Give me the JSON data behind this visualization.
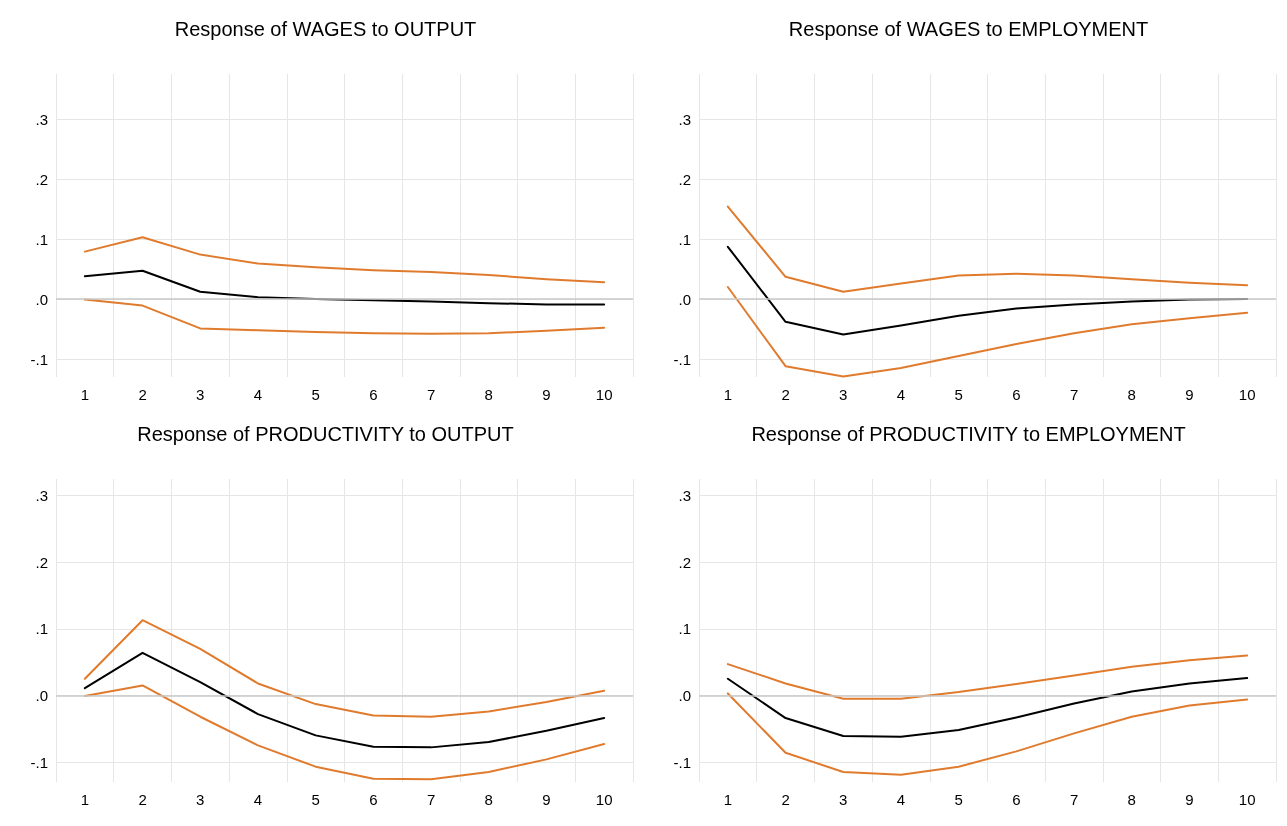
{
  "chart_data": [
    {
      "type": "line",
      "title": "Response of WAGES to OUTPUT",
      "categories": [
        "1",
        "2",
        "3",
        "4",
        "5",
        "6",
        "7",
        "8",
        "9",
        "10"
      ],
      "series": [
        {
          "color": "#e07b2e",
          "values": [
            0.079,
            0.103,
            0.074,
            0.059,
            0.053,
            0.048,
            0.045,
            0.04,
            0.033,
            0.028
          ]
        },
        {
          "color": "#000000",
          "values": [
            0.038,
            0.047,
            0.012,
            0.003,
            0.0,
            -0.002,
            -0.004,
            -0.007,
            -0.009,
            -0.009
          ]
        },
        {
          "color": "#e07b2e",
          "values": [
            -0.001,
            -0.011,
            -0.049,
            -0.052,
            -0.055,
            -0.057,
            -0.058,
            -0.057,
            -0.053,
            -0.048
          ]
        }
      ],
      "ylim": [
        -0.13,
        0.375
      ],
      "yticks": [
        {
          "value": -0.1,
          "label": "-.1"
        },
        {
          "value": 0,
          "label": ".0"
        },
        {
          "value": 0.1,
          "label": ".1"
        },
        {
          "value": 0.2,
          "label": ".2"
        },
        {
          "value": 0.3,
          "label": ".3"
        }
      ],
      "grid": true,
      "marker": "none",
      "line_style": "solid",
      "ref_lines": [
        {
          "axis": "y",
          "value": 0,
          "color": "#c8c8c8"
        }
      ]
    },
    {
      "type": "line",
      "title": "Response of WAGES to EMPLOYMENT",
      "categories": [
        "1",
        "2",
        "3",
        "4",
        "5",
        "6",
        "7",
        "8",
        "9",
        "10"
      ],
      "series": [
        {
          "color": "#e07b2e",
          "values": [
            0.154,
            0.037,
            0.012,
            0.026,
            0.039,
            0.042,
            0.039,
            0.033,
            0.027,
            0.023
          ]
        },
        {
          "color": "#000000",
          "values": [
            0.087,
            -0.038,
            -0.059,
            -0.044,
            -0.028,
            -0.016,
            -0.009,
            -0.004,
            -0.001,
            0.0
          ]
        },
        {
          "color": "#e07b2e",
          "values": [
            0.02,
            -0.112,
            -0.129,
            -0.115,
            -0.095,
            -0.075,
            -0.057,
            -0.042,
            -0.032,
            -0.023
          ]
        }
      ],
      "ylim": [
        -0.13,
        0.375
      ],
      "yticks": [
        {
          "value": -0.1,
          "label": "-.1"
        },
        {
          "value": 0,
          "label": ".0"
        },
        {
          "value": 0.1,
          "label": ".1"
        },
        {
          "value": 0.2,
          "label": ".2"
        },
        {
          "value": 0.3,
          "label": ".3"
        }
      ],
      "grid": true,
      "marker": "none",
      "line_style": "solid",
      "ref_lines": [
        {
          "axis": "y",
          "value": 0,
          "color": "#c8c8c8"
        }
      ]
    },
    {
      "type": "line",
      "title": "Response of PRODUCTIVITY to OUTPUT",
      "categories": [
        "1",
        "2",
        "3",
        "4",
        "5",
        "6",
        "7",
        "8",
        "9",
        "10"
      ],
      "series": [
        {
          "color": "#e07b2e",
          "values": [
            0.025,
            0.113,
            0.07,
            0.018,
            -0.013,
            -0.03,
            -0.032,
            -0.024,
            -0.01,
            0.007
          ]
        },
        {
          "color": "#000000",
          "values": [
            0.011,
            0.064,
            0.02,
            -0.028,
            -0.06,
            -0.077,
            -0.078,
            -0.07,
            -0.053,
            -0.034
          ]
        },
        {
          "color": "#e07b2e",
          "values": [
            -0.001,
            0.015,
            -0.032,
            -0.075,
            -0.107,
            -0.125,
            -0.126,
            -0.115,
            -0.096,
            -0.073
          ]
        }
      ],
      "ylim": [
        -0.13,
        0.325
      ],
      "yticks": [
        {
          "value": -0.1,
          "label": "-.1"
        },
        {
          "value": 0,
          "label": ".0"
        },
        {
          "value": 0.1,
          "label": ".1"
        },
        {
          "value": 0.2,
          "label": ".2"
        },
        {
          "value": 0.3,
          "label": ".3"
        }
      ],
      "grid": true,
      "marker": "none",
      "line_style": "solid",
      "ref_lines": [
        {
          "axis": "y",
          "value": 0,
          "color": "#c8c8c8"
        }
      ]
    },
    {
      "type": "line",
      "title": "Response of PRODUCTIVITY to EMPLOYMENT",
      "categories": [
        "1",
        "2",
        "3",
        "4",
        "5",
        "6",
        "7",
        "8",
        "9",
        "10"
      ],
      "series": [
        {
          "color": "#e07b2e",
          "values": [
            0.047,
            0.018,
            -0.005,
            -0.005,
            0.005,
            0.017,
            0.03,
            0.043,
            0.053,
            0.06
          ]
        },
        {
          "color": "#000000",
          "values": [
            0.025,
            -0.034,
            -0.061,
            -0.062,
            -0.052,
            -0.033,
            -0.012,
            0.006,
            0.018,
            0.026
          ]
        },
        {
          "color": "#e07b2e",
          "values": [
            0.003,
            -0.086,
            -0.115,
            -0.119,
            -0.107,
            -0.084,
            -0.057,
            -0.032,
            -0.015,
            -0.006
          ]
        }
      ],
      "ylim": [
        -0.13,
        0.325
      ],
      "yticks": [
        {
          "value": -0.1,
          "label": "-.1"
        },
        {
          "value": 0,
          "label": ".0"
        },
        {
          "value": 0.1,
          "label": ".1"
        },
        {
          "value": 0.2,
          "label": ".2"
        },
        {
          "value": 0.3,
          "label": ".3"
        }
      ],
      "grid": true,
      "marker": "none",
      "line_style": "solid",
      "ref_lines": [
        {
          "axis": "y",
          "value": 0,
          "color": "#c8c8c8"
        }
      ]
    }
  ]
}
